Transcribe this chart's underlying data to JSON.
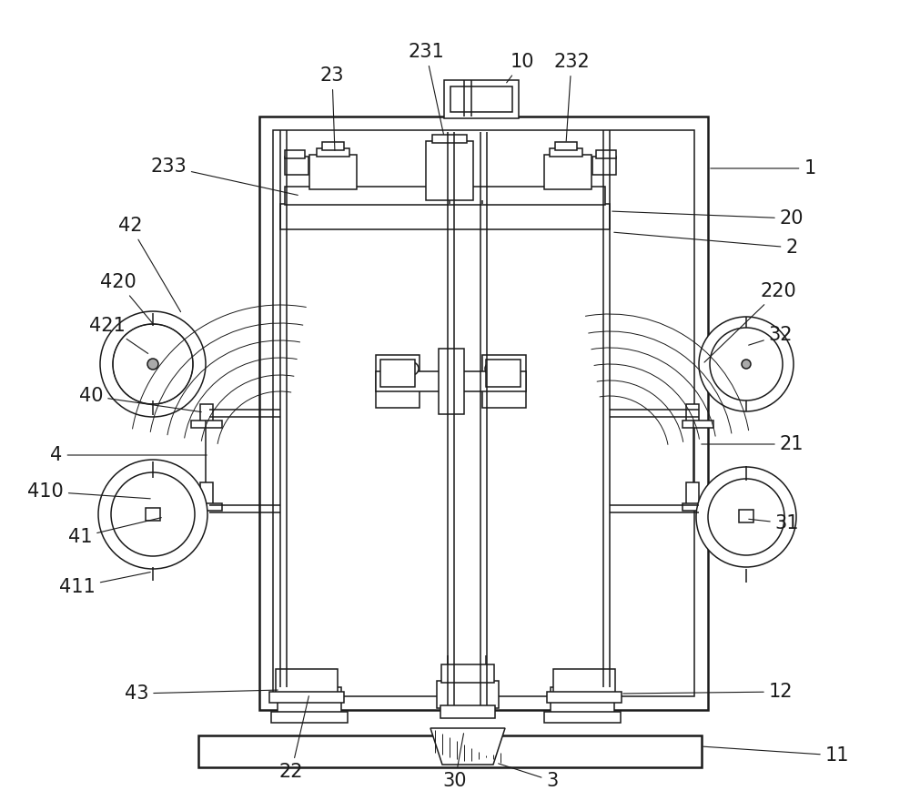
{
  "bg": "#ffffff",
  "lc": "#1a1a1a",
  "lw": 1.1,
  "lw2": 1.8,
  "lw3": 0.7,
  "fs": 15,
  "fw": 10.0,
  "fh": 8.91
}
